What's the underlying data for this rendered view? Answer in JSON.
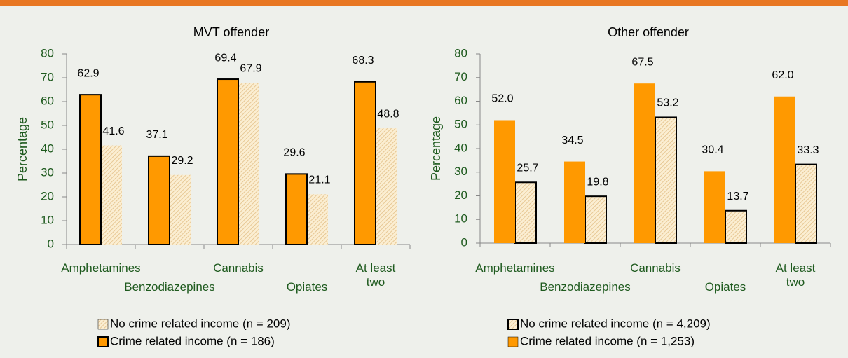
{
  "chart_data": [
    {
      "type": "bar",
      "title": "MVT offender",
      "y_label": "Percentage",
      "categories": [
        "Amphetamines",
        "Benzodiazepines",
        "Cannabis",
        "Opiates",
        "At least two"
      ],
      "ylim": [
        0,
        80
      ],
      "yticks": [
        0,
        10,
        20,
        30,
        40,
        50,
        60,
        70,
        80
      ],
      "series": [
        {
          "name": "No crime related income (n = 209)",
          "color": "#f7e2b8",
          "hatch": true,
          "edgecolor": "none",
          "values": [
            41.6,
            29.2,
            67.9,
            21.1,
            48.8
          ],
          "value_labels": [
            "41.6",
            "29.2",
            "67.9",
            "21.1",
            "48.8"
          ]
        },
        {
          "name": "Crime related income (n = 186)",
          "color": "#ff9900",
          "hatch": false,
          "edgecolor": "#000000",
          "values": [
            62.9,
            37.1,
            69.4,
            29.6,
            68.3
          ],
          "value_labels": [
            "62.9",
            "37.1",
            "69.4",
            "29.6",
            "68.3"
          ]
        }
      ]
    },
    {
      "type": "bar",
      "title": "Other offender",
      "y_label": "Percentage",
      "categories": [
        "Amphetamines",
        "Benzodiazepines",
        "Cannabis",
        "Opiates",
        "At least two"
      ],
      "ylim": [
        0,
        80
      ],
      "yticks": [
        0,
        10,
        20,
        30,
        40,
        50,
        60,
        70,
        80
      ],
      "series": [
        {
          "name": "No crime related income (n = 4,209)",
          "color": "#f7e2b8",
          "hatch": true,
          "edgecolor": "#000000",
          "values": [
            25.7,
            19.8,
            53.2,
            13.7,
            33.3
          ],
          "value_labels": [
            "25.7",
            "19.8",
            "53.2",
            "13.7",
            "33.3"
          ]
        },
        {
          "name": "Crime related income (n = 1,253)",
          "color": "#ff9900",
          "hatch": false,
          "edgecolor": "none",
          "values": [
            52.0,
            34.5,
            67.5,
            30.4,
            62.0
          ],
          "value_labels": [
            "52.0",
            "34.5",
            "67.5",
            "30.4",
            "62.0"
          ]
        }
      ]
    }
  ]
}
